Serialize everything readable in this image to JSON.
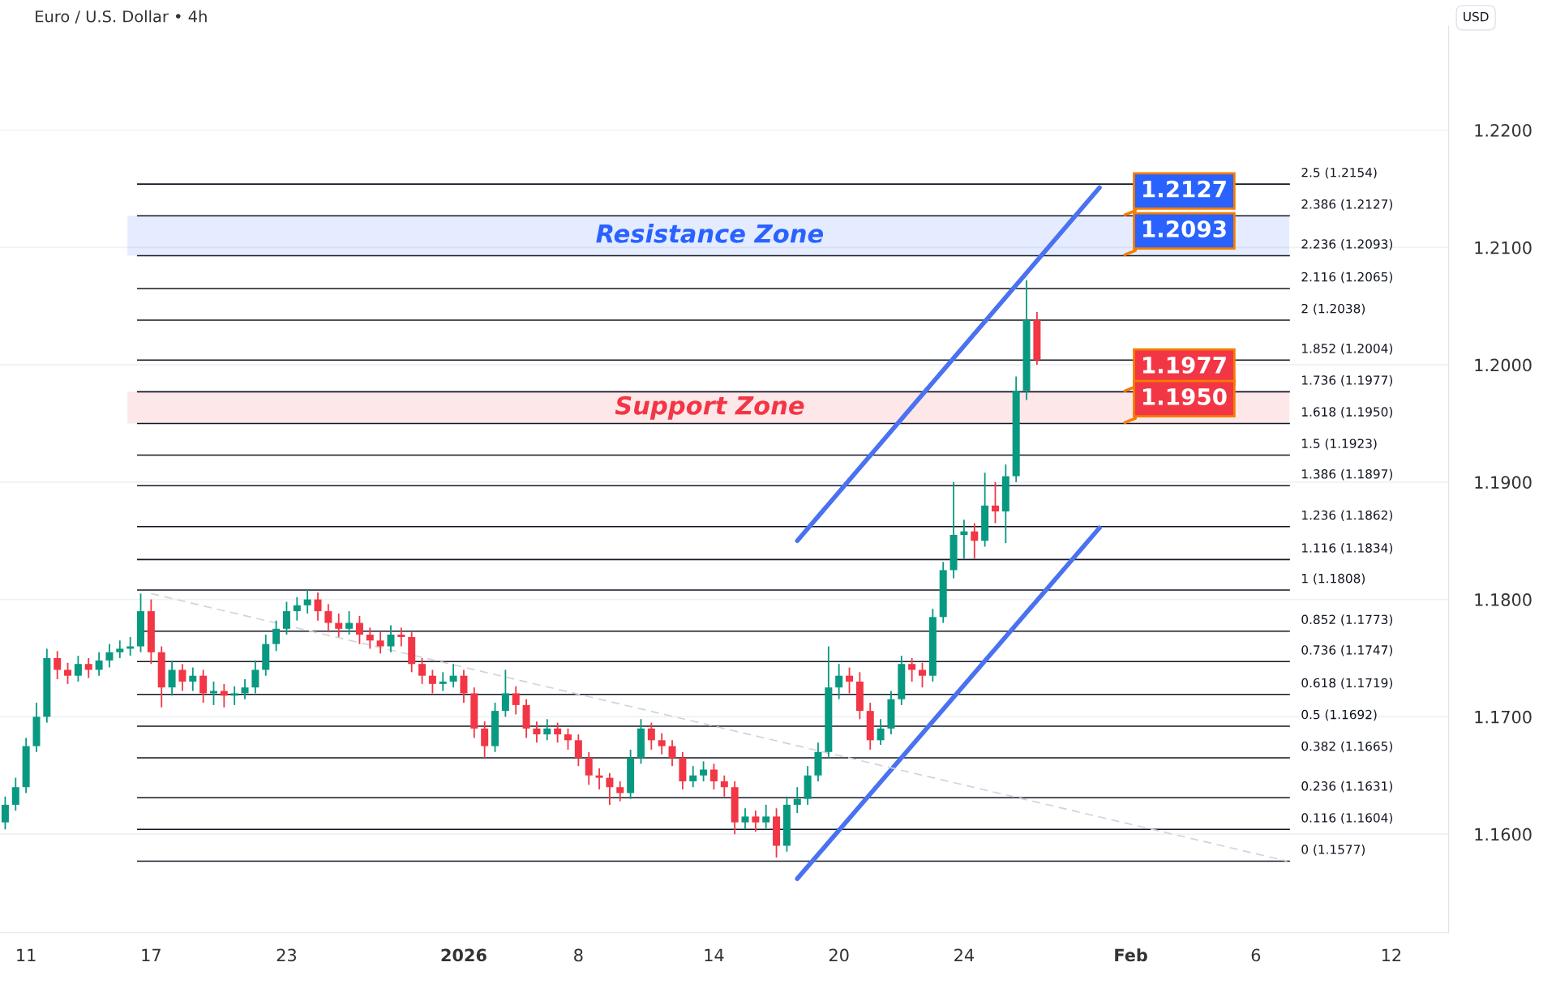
{
  "chart_data": {
    "type": "candlestick",
    "title": "Euro / U.S. Dollar • 4h",
    "categories": [
      null,
      null,
      "11",
      null,
      null,
      null,
      null,
      null,
      null,
      null,
      null,
      null,
      null,
      null,
      "17",
      null,
      null,
      null,
      null,
      null,
      null,
      null,
      null,
      null,
      null,
      null,
      null,
      "23",
      null,
      null,
      null,
      null,
      null,
      null,
      null,
      null,
      null,
      null,
      null,
      null,
      null,
      null,
      null,
      null,
      "2026",
      null,
      null,
      null,
      null,
      null,
      null,
      null,
      null,
      null,
      null,
      "8",
      null,
      null,
      null,
      null,
      null,
      null,
      null,
      null,
      null,
      null,
      null,
      null,
      "14",
      null,
      null,
      null,
      null,
      null,
      null,
      null,
      null,
      null,
      null,
      null,
      "20",
      null,
      null,
      null,
      null,
      null,
      null,
      null,
      null,
      null,
      null,
      null,
      "24",
      null,
      null,
      null,
      null,
      null,
      null,
      null,
      null,
      null,
      null,
      null,
      null,
      null,
      null,
      null,
      "Feb",
      null,
      null,
      null,
      null,
      null,
      null,
      null,
      null,
      null,
      null,
      null,
      "6",
      null,
      null,
      null,
      null,
      null,
      null,
      null,
      null,
      null,
      null,
      null,
      null,
      "12",
      null,
      null,
      null,
      null,
      null
    ],
    "ohlc": [
      [
        1.161,
        1.1632,
        1.1604,
        1.1625
      ],
      [
        1.1625,
        1.1648,
        1.162,
        1.164
      ],
      [
        1.164,
        1.1682,
        1.1635,
        1.1675
      ],
      [
        1.1675,
        1.1712,
        1.167,
        1.17
      ],
      [
        1.17,
        1.1758,
        1.1695,
        1.175
      ],
      [
        1.175,
        1.1756,
        1.1732,
        1.174
      ],
      [
        1.174,
        1.1746,
        1.1728,
        1.1735
      ],
      [
        1.1735,
        1.1752,
        1.173,
        1.1745
      ],
      [
        1.1745,
        1.175,
        1.1733,
        1.174
      ],
      [
        1.174,
        1.1755,
        1.1735,
        1.1748
      ],
      [
        1.1748,
        1.1762,
        1.1742,
        1.1755
      ],
      [
        1.1755,
        1.1765,
        1.175,
        1.1758
      ],
      [
        1.1758,
        1.1768,
        1.1752,
        1.176
      ],
      [
        1.176,
        1.1805,
        1.1755,
        1.179
      ],
      [
        1.179,
        1.18,
        1.1745,
        1.1755
      ],
      [
        1.1755,
        1.176,
        1.1708,
        1.1725
      ],
      [
        1.1725,
        1.1748,
        1.1718,
        1.174
      ],
      [
        1.174,
        1.1745,
        1.1722,
        1.173
      ],
      [
        1.173,
        1.1742,
        1.1722,
        1.1735
      ],
      [
        1.1735,
        1.174,
        1.1712,
        1.172
      ],
      [
        1.172,
        1.173,
        1.171,
        1.1722
      ],
      [
        1.1722,
        1.1728,
        1.1708,
        1.1718
      ],
      [
        1.1718,
        1.1726,
        1.171,
        1.172
      ],
      [
        1.172,
        1.1732,
        1.1715,
        1.1725
      ],
      [
        1.1725,
        1.1748,
        1.172,
        1.174
      ],
      [
        1.174,
        1.177,
        1.1735,
        1.1762
      ],
      [
        1.1762,
        1.1782,
        1.1756,
        1.1775
      ],
      [
        1.1775,
        1.1798,
        1.177,
        1.179
      ],
      [
        1.179,
        1.1802,
        1.1782,
        1.1795
      ],
      [
        1.1795,
        1.1808,
        1.1788,
        1.18
      ],
      [
        1.18,
        1.1806,
        1.1782,
        1.179
      ],
      [
        1.179,
        1.1796,
        1.1772,
        1.178
      ],
      [
        1.178,
        1.1788,
        1.1768,
        1.1775
      ],
      [
        1.1775,
        1.179,
        1.177,
        1.178
      ],
      [
        1.178,
        1.1786,
        1.1762,
        1.177
      ],
      [
        1.177,
        1.1776,
        1.1758,
        1.1765
      ],
      [
        1.1765,
        1.1772,
        1.1754,
        1.176
      ],
      [
        1.176,
        1.1778,
        1.1755,
        1.177
      ],
      [
        1.177,
        1.1776,
        1.176,
        1.1768
      ],
      [
        1.1768,
        1.1772,
        1.1738,
        1.1745
      ],
      [
        1.1745,
        1.175,
        1.1728,
        1.1735
      ],
      [
        1.1735,
        1.174,
        1.172,
        1.1728
      ],
      [
        1.1728,
        1.1738,
        1.1722,
        1.173
      ],
      [
        1.173,
        1.1745,
        1.1725,
        1.1735
      ],
      [
        1.1735,
        1.174,
        1.1712,
        1.172
      ],
      [
        1.172,
        1.1725,
        1.1682,
        1.169
      ],
      [
        1.169,
        1.1696,
        1.1665,
        1.1675
      ],
      [
        1.1675,
        1.1712,
        1.167,
        1.1705
      ],
      [
        1.1705,
        1.174,
        1.17,
        1.172
      ],
      [
        1.172,
        1.1726,
        1.1702,
        1.171
      ],
      [
        1.171,
        1.1715,
        1.1682,
        1.169
      ],
      [
        1.169,
        1.1696,
        1.1678,
        1.1685
      ],
      [
        1.1685,
        1.1698,
        1.168,
        1.169
      ],
      [
        1.169,
        1.1695,
        1.1678,
        1.1685
      ],
      [
        1.1685,
        1.169,
        1.1672,
        1.168
      ],
      [
        1.168,
        1.1685,
        1.1658,
        1.1665
      ],
      [
        1.1665,
        1.167,
        1.1642,
        1.165
      ],
      [
        1.165,
        1.1656,
        1.1638,
        1.1648
      ],
      [
        1.1648,
        1.1652,
        1.1625,
        1.164
      ],
      [
        1.164,
        1.1645,
        1.1628,
        1.1635
      ],
      [
        1.1635,
        1.1672,
        1.163,
        1.1665
      ],
      [
        1.1665,
        1.1698,
        1.166,
        1.169
      ],
      [
        1.169,
        1.1695,
        1.1672,
        1.168
      ],
      [
        1.168,
        1.1686,
        1.1668,
        1.1675
      ],
      [
        1.1675,
        1.168,
        1.1658,
        1.1665
      ],
      [
        1.1665,
        1.167,
        1.1638,
        1.1645
      ],
      [
        1.1645,
        1.1658,
        1.164,
        1.165
      ],
      [
        1.165,
        1.1662,
        1.1645,
        1.1655
      ],
      [
        1.1655,
        1.166,
        1.1638,
        1.1645
      ],
      [
        1.1645,
        1.165,
        1.1632,
        1.164
      ],
      [
        1.164,
        1.1645,
        1.16,
        1.161
      ],
      [
        1.161,
        1.1622,
        1.1604,
        1.1615
      ],
      [
        1.1615,
        1.162,
        1.1602,
        1.161
      ],
      [
        1.161,
        1.1625,
        1.1605,
        1.1615
      ],
      [
        1.1615,
        1.1622,
        1.158,
        1.159
      ],
      [
        1.159,
        1.1632,
        1.1585,
        1.1625
      ],
      [
        1.1625,
        1.164,
        1.1618,
        1.163
      ],
      [
        1.163,
        1.1658,
        1.1625,
        1.165
      ],
      [
        1.165,
        1.1678,
        1.1645,
        1.167
      ],
      [
        1.167,
        1.176,
        1.1665,
        1.1725
      ],
      [
        1.1725,
        1.1745,
        1.1715,
        1.1735
      ],
      [
        1.1735,
        1.1742,
        1.172,
        1.173
      ],
      [
        1.173,
        1.1738,
        1.1698,
        1.1705
      ],
      [
        1.1705,
        1.1712,
        1.1672,
        1.168
      ],
      [
        1.168,
        1.1698,
        1.1676,
        1.169
      ],
      [
        1.169,
        1.1722,
        1.1685,
        1.1715
      ],
      [
        1.1715,
        1.1752,
        1.171,
        1.1745
      ],
      [
        1.1745,
        1.175,
        1.173,
        1.174
      ],
      [
        1.174,
        1.1746,
        1.1725,
        1.1735
      ],
      [
        1.1735,
        1.1792,
        1.173,
        1.1785
      ],
      [
        1.1785,
        1.1832,
        1.178,
        1.1825
      ],
      [
        1.1825,
        1.19,
        1.1818,
        1.1855
      ],
      [
        1.1855,
        1.1868,
        1.1835,
        1.1858
      ],
      [
        1.1858,
        1.1865,
        1.1835,
        1.185
      ],
      [
        1.185,
        1.1908,
        1.1845,
        1.188
      ],
      [
        1.188,
        1.19,
        1.1865,
        1.1875
      ],
      [
        1.1875,
        1.1915,
        1.1848,
        1.1905
      ],
      [
        1.1905,
        1.199,
        1.19,
        1.1978
      ],
      [
        1.1978,
        1.2072,
        1.197,
        1.2038
      ],
      [
        1.2038,
        1.2045,
        1.2,
        1.2004
      ],
      null,
      null,
      null,
      null,
      null,
      null,
      null,
      null,
      null,
      null,
      null,
      null,
      null,
      null,
      null,
      null,
      null,
      null,
      null,
      null,
      null,
      null,
      null,
      null,
      null,
      null,
      null,
      null,
      null,
      null,
      null,
      null,
      null,
      null,
      null,
      null,
      null,
      null,
      null
    ],
    "series": [
      {
        "type": "line",
        "color": "#4a72f0",
        "line_style": "solid",
        "values": [
          null,
          null,
          null,
          null,
          null,
          null,
          null,
          null,
          null,
          null,
          null,
          null,
          null,
          null,
          null,
          null,
          null,
          null,
          null,
          null,
          null,
          null,
          null,
          null,
          null,
          null,
          null,
          null,
          null,
          null,
          null,
          null,
          null,
          null,
          null,
          null,
          null,
          null,
          null,
          null,
          null,
          null,
          null,
          null,
          null,
          null,
          null,
          null,
          null,
          null,
          null,
          null,
          null,
          null,
          null,
          null,
          null,
          null,
          null,
          null,
          null,
          null,
          null,
          null,
          null,
          null,
          null,
          null,
          null,
          null,
          null,
          null,
          null,
          null,
          null,
          null,
          1.185,
          null,
          null,
          null,
          null,
          null,
          null,
          null,
          null,
          null,
          null,
          null,
          null,
          null,
          null,
          null,
          null,
          null,
          null,
          null,
          null,
          null,
          null,
          null,
          null,
          null,
          null,
          null,
          null,
          1.2151,
          null,
          null,
          null,
          null,
          null,
          null,
          null,
          null,
          null,
          null,
          null,
          null,
          null,
          null,
          null,
          null,
          null,
          null,
          null,
          null,
          null,
          null,
          null,
          null,
          null,
          null,
          null,
          null,
          null,
          null,
          null,
          null,
          null
        ]
      },
      {
        "type": "line",
        "color": "#4a72f0",
        "line_style": "solid",
        "values": [
          null,
          null,
          null,
          null,
          null,
          null,
          null,
          null,
          null,
          null,
          null,
          null,
          null,
          null,
          null,
          null,
          null,
          null,
          null,
          null,
          null,
          null,
          null,
          null,
          null,
          null,
          null,
          null,
          null,
          null,
          null,
          null,
          null,
          null,
          null,
          null,
          null,
          null,
          null,
          null,
          null,
          null,
          null,
          null,
          null,
          null,
          null,
          null,
          null,
          null,
          null,
          null,
          null,
          null,
          null,
          null,
          null,
          null,
          null,
          null,
          null,
          null,
          null,
          null,
          null,
          null,
          null,
          null,
          null,
          null,
          null,
          null,
          null,
          null,
          null,
          null,
          1.1562,
          null,
          null,
          null,
          null,
          null,
          null,
          null,
          null,
          null,
          null,
          null,
          null,
          null,
          null,
          null,
          null,
          null,
          null,
          null,
          null,
          null,
          null,
          null,
          null,
          null,
          null,
          null,
          null,
          1.1861,
          null,
          null,
          null,
          null,
          null,
          null,
          null,
          null,
          null,
          null,
          null,
          null,
          null,
          null,
          null,
          null,
          null,
          null,
          null,
          null,
          null,
          null,
          null,
          null,
          null,
          null,
          null,
          null,
          null,
          null,
          null,
          null,
          null
        ]
      },
      {
        "type": "line",
        "color": "#d0d3da",
        "line_style": "dashed",
        "values": [
          null,
          null,
          null,
          null,
          null,
          null,
          null,
          null,
          null,
          null,
          null,
          null,
          null,
          null,
          1.1805,
          null,
          null,
          null,
          null,
          null,
          null,
          null,
          null,
          null,
          null,
          null,
          null,
          null,
          null,
          null,
          null,
          null,
          null,
          null,
          null,
          null,
          null,
          null,
          null,
          null,
          null,
          null,
          null,
          null,
          null,
          null,
          null,
          null,
          null,
          null,
          null,
          null,
          null,
          null,
          null,
          null,
          null,
          null,
          null,
          null,
          null,
          null,
          null,
          null,
          null,
          null,
          null,
          null,
          null,
          null,
          null,
          null,
          null,
          null,
          null,
          null,
          null,
          null,
          null,
          null,
          null,
          null,
          null,
          null,
          null,
          null,
          null,
          null,
          null,
          null,
          null,
          null,
          null,
          null,
          null,
          null,
          null,
          null,
          null,
          null,
          null,
          null,
          null,
          null,
          null,
          null,
          null,
          null,
          null,
          null,
          null,
          null,
          null,
          null,
          null,
          null,
          null,
          null,
          null,
          null,
          null,
          null,
          null,
          1.1577,
          null,
          null,
          null,
          null,
          null,
          null,
          null,
          null,
          null,
          null,
          null,
          null,
          null,
          null,
          null
        ]
      }
    ],
    "ylim": [
      1.1516,
      1.2289
    ],
    "yticks": [
      {
        "value": 1.16,
        "label": "1.1600"
      },
      {
        "value": 1.17,
        "label": "1.1700"
      },
      {
        "value": 1.18,
        "label": "1.1800"
      },
      {
        "value": 1.19,
        "label": "1.1900"
      },
      {
        "value": 1.2,
        "label": "1.2000"
      },
      {
        "value": 1.21,
        "label": "1.2100"
      },
      {
        "value": 1.22,
        "label": "1.2200"
      }
    ],
    "grid": "y",
    "ref_lines": [
      {
        "axis": "y",
        "value": 1.2154,
        "label": "2.5 (1.2154)",
        "color": "#131722"
      },
      {
        "axis": "y",
        "value": 1.2127,
        "label": "2.386 (1.2127)",
        "color": "#131722"
      },
      {
        "axis": "y",
        "value": 1.2093,
        "label": "2.236 (1.2093)",
        "color": "#131722"
      },
      {
        "axis": "y",
        "value": 1.2065,
        "label": "2.116 (1.2065)",
        "color": "#131722"
      },
      {
        "axis": "y",
        "value": 1.2038,
        "label": "2 (1.2038)",
        "color": "#131722"
      },
      {
        "axis": "y",
        "value": 1.2004,
        "label": "1.852 (1.2004)",
        "color": "#131722"
      },
      {
        "axis": "y",
        "value": 1.1977,
        "label": "1.736 (1.1977)",
        "color": "#131722"
      },
      {
        "axis": "y",
        "value": 1.195,
        "label": "1.618 (1.1950)",
        "color": "#131722"
      },
      {
        "axis": "y",
        "value": 1.1923,
        "label": "1.5 (1.1923)",
        "color": "#131722"
      },
      {
        "axis": "y",
        "value": 1.1897,
        "label": "1.386 (1.1897)",
        "color": "#131722"
      },
      {
        "axis": "y",
        "value": 1.1862,
        "label": "1.236 (1.1862)",
        "color": "#131722"
      },
      {
        "axis": "y",
        "value": 1.1834,
        "label": "1.116 (1.1834)",
        "color": "#131722"
      },
      {
        "axis": "y",
        "value": 1.1808,
        "label": "1 (1.1808)",
        "color": "#131722"
      },
      {
        "axis": "y",
        "value": 1.1773,
        "label": "0.852 (1.1773)",
        "color": "#131722"
      },
      {
        "axis": "y",
        "value": 1.1747,
        "label": "0.736 (1.1747)",
        "color": "#131722"
      },
      {
        "axis": "y",
        "value": 1.1719,
        "label": "0.618 (1.1719)",
        "color": "#131722"
      },
      {
        "axis": "y",
        "value": 1.1692,
        "label": "0.5 (1.1692)",
        "color": "#131722"
      },
      {
        "axis": "y",
        "value": 1.1665,
        "label": "0.382 (1.1665)",
        "color": "#131722"
      },
      {
        "axis": "y",
        "value": 1.1631,
        "label": "0.236 (1.1631)",
        "color": "#131722"
      },
      {
        "axis": "y",
        "value": 1.1604,
        "label": "0.116 (1.1604)",
        "color": "#131722"
      },
      {
        "axis": "y",
        "value": 1.1577,
        "label": "0 (1.1577)",
        "color": "#131722"
      }
    ],
    "bands": [
      {
        "axis": "y",
        "from": 1.2093,
        "to": 1.2127,
        "label": "Resistance Zone",
        "color": "#2962ff"
      },
      {
        "axis": "y",
        "from": 1.195,
        "to": 1.1977,
        "label": "Support Zone",
        "color": "#f23645"
      }
    ],
    "annotations": [
      "USD",
      {
        "text": "1.2127",
        "y": 1.2127
      },
      {
        "text": "1.2093",
        "y": 1.2093
      },
      {
        "text": "1.1977",
        "y": 1.1977
      },
      {
        "text": "1.1950",
        "y": 1.195
      }
    ],
    "legend": false
  }
}
